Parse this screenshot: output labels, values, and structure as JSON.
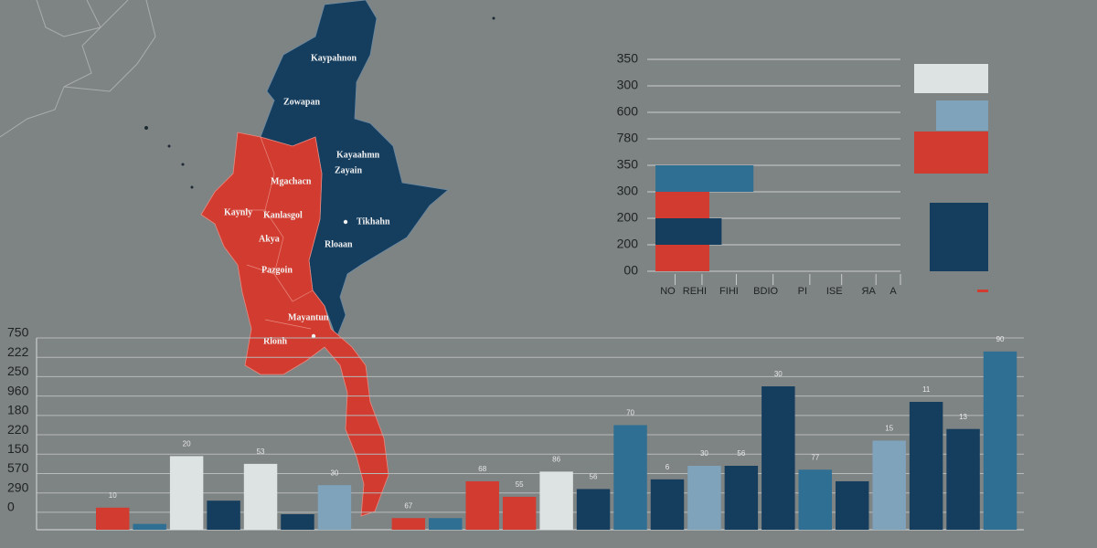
{
  "map": {
    "regions": [
      "Kaypahnon",
      "Zowapan",
      "Kayaahmn",
      "Zayain",
      "Mgachacn",
      "Kaynly",
      "Kanlasgol",
      "Tikhahn",
      "Akya",
      "Rloaan",
      "Pazgoin",
      "Mayantun",
      "Rlonh"
    ]
  },
  "chart_data": [
    {
      "type": "hbar",
      "categories": [
        "350",
        "300",
        "600",
        "780",
        "350",
        "300",
        "200",
        "200",
        "00"
      ],
      "values": [
        null,
        null,
        null,
        null,
        40,
        22,
        27,
        22,
        null
      ],
      "colors": [
        null,
        null,
        null,
        null,
        "#2f6f94",
        "#d23b2f",
        "#143d5e",
        "#d23b2f",
        null
      ],
      "xlim": [
        0,
        100
      ],
      "xticks": [
        {
          "value": 8,
          "label": "NO"
        },
        {
          "value": 19,
          "label": "REHI"
        },
        {
          "value": 33,
          "label": "FIHI"
        },
        {
          "value": 48,
          "label": "BDIO"
        },
        {
          "value": 63,
          "label": "PI"
        },
        {
          "value": 76,
          "label": "ISE"
        },
        {
          "value": 90,
          "label": "ЯA"
        },
        {
          "value": 100,
          "label": "A"
        }
      ],
      "grid": true
    },
    {
      "type": "bar",
      "values": [
        0.24,
        -0.6,
        2.9,
        0.6,
        2.5,
        -0.1,
        1.4,
        null,
        -0.3,
        -0.3,
        1.6,
        0.8,
        2.1,
        1.2,
        4.5,
        1.7,
        2.4,
        2.4,
        6.5,
        2.2,
        1.6,
        3.7,
        5.7,
        4.3,
        8.3
      ],
      "colors": [
        "#d23b2f",
        "#2f6f94",
        "#dde3e3",
        "#143d5e",
        "#dde3e3",
        "#143d5e",
        "#7fa3bb",
        null,
        "#d23b2f",
        "#2f6f94",
        "#d23b2f",
        "#d23b2f",
        "#dde3e3",
        "#143d5e",
        "#2f6f94",
        "#143d5e",
        "#7fa3bb",
        "#143d5e",
        "#143d5e",
        "#2f6f94",
        "#143d5e",
        "#7fa3bb",
        "#143d5e",
        "#143d5e",
        "#2f6f94"
      ],
      "labels": [
        "10",
        null,
        "20",
        null,
        "53",
        null,
        "30",
        null,
        "67",
        null,
        "68",
        "55",
        "86",
        "56",
        "70",
        "6",
        "30",
        "56",
        "30",
        "77",
        null,
        "15",
        "11",
        "13",
        "90"
      ],
      "ylim": [
        -0.9,
        9
      ],
      "yticks": [
        0,
        {
          "value": 1,
          "label": "290"
        },
        {
          "value": 2,
          "label": "570"
        },
        {
          "value": 3,
          "label": "150"
        },
        {
          "value": 4,
          "label": "220"
        },
        {
          "value": 5,
          "label": "180"
        },
        {
          "value": 6,
          "label": "960"
        },
        {
          "value": 7,
          "label": "250"
        },
        {
          "value": 8,
          "label": "222"
        },
        {
          "value": 9,
          "label": "750"
        }
      ],
      "grid": true
    }
  ]
}
